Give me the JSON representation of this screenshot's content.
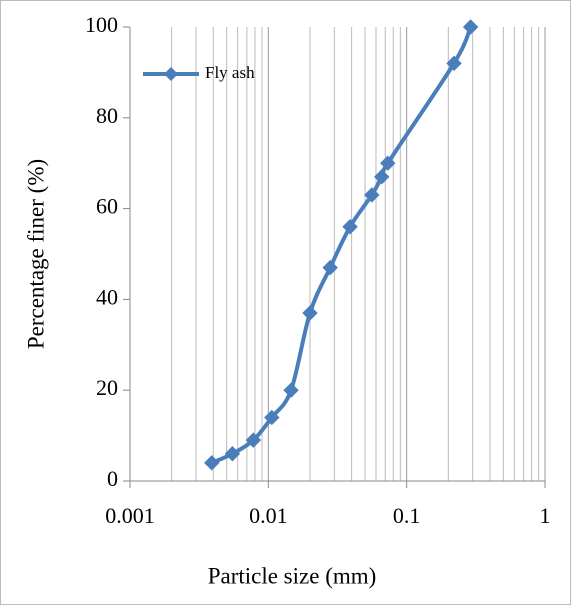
{
  "chart_data": {
    "type": "line",
    "x_label": "Particle size (mm)",
    "y_label": "Percentage finer (%)",
    "x": [
      0.0039,
      0.0055,
      0.0078,
      0.0106,
      0.0146,
      0.02,
      0.028,
      0.039,
      0.056,
      0.066,
      0.073,
      0.22,
      0.29
    ],
    "series": [
      {
        "name": "Fly ash",
        "color": "#4a7ebb",
        "values": [
          4,
          6,
          9,
          14,
          20,
          37,
          47,
          56,
          63,
          67,
          70,
          92,
          100
        ]
      }
    ],
    "xlim": [
      0.001,
      1
    ],
    "xticks": [
      0.001,
      0.01,
      0.1,
      1
    ],
    "x_log": true,
    "x_minor_grid": true,
    "ylim": [
      0,
      100
    ],
    "yticks": [
      0,
      20,
      40,
      60,
      80,
      100
    ],
    "legend": "upper-left"
  }
}
